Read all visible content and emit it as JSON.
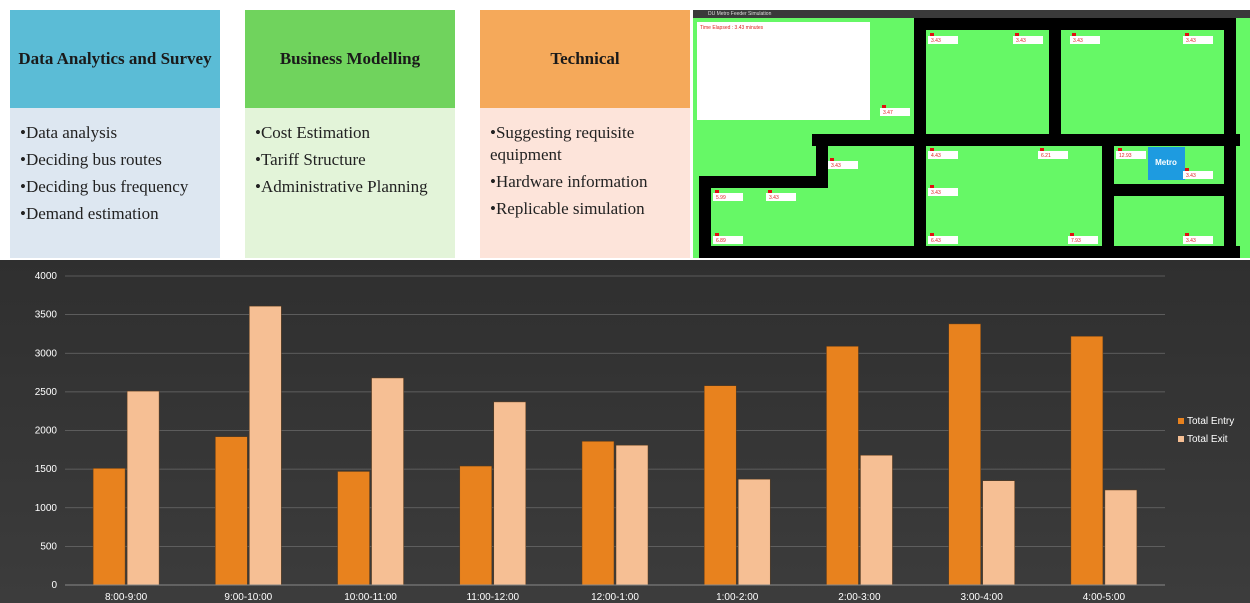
{
  "cards": [
    {
      "title": "Data Analytics and Survey",
      "items": [
        "•Data analysis",
        "•Deciding bus routes",
        "•Deciding bus frequency",
        "•Demand estimation"
      ]
    },
    {
      "title": "Business Modelling",
      "items": [
        "•Cost Estimation",
        "•Tariff Structure",
        "•Administrative Planning"
      ]
    },
    {
      "title": "Technical",
      "items": [
        "•Suggesting requisite equipment",
        "•Hardware information",
        "•Replicable simulation"
      ]
    }
  ],
  "simulation": {
    "window_title": "DU Metro Feeder Simulation",
    "time_elapsed": "Time Elapsed : 3.43 minutes",
    "station": "Metro",
    "labels": [
      "3.43",
      "3.43",
      "3.43",
      "3.43",
      "3.47",
      "3.43",
      "4.43",
      "6.21",
      "12.93",
      "3.43",
      "3.43",
      "5.99",
      "3.43",
      "6.89",
      "6.43",
      "7.93",
      "3.43"
    ]
  },
  "chart_data": {
    "type": "bar",
    "categories": [
      "8:00-9:00",
      "9:00-10:00",
      "10:00-11:00",
      "11:00-12:00",
      "12:00-1:00",
      "1:00-2:00",
      "2:00-3:00",
      "3:00-4:00",
      "4:00-5:00"
    ],
    "series": [
      {
        "name": "Total Entry",
        "color": "#e8821e",
        "values": [
          1510,
          1920,
          1470,
          1540,
          1860,
          2580,
          3090,
          3380,
          3220
        ]
      },
      {
        "name": "Total Exit",
        "color": "#f6bf94",
        "values": [
          2510,
          3610,
          2680,
          2370,
          1810,
          1370,
          1680,
          1350,
          1230
        ]
      }
    ],
    "ylim": [
      0,
      4000
    ],
    "yticks": [
      0,
      500,
      1000,
      1500,
      2000,
      2500,
      3000,
      3500,
      4000
    ],
    "grid": true,
    "legend": "right"
  }
}
